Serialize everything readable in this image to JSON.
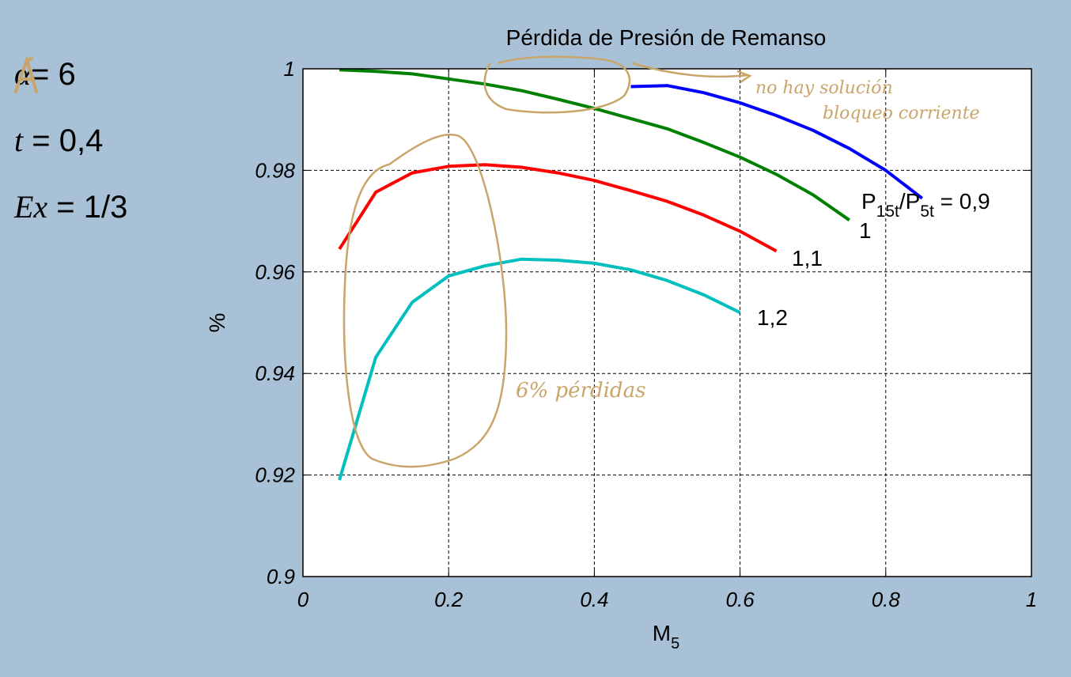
{
  "params": [
    {
      "symbol": "",
      "eq": "= 6",
      "struck": true
    },
    {
      "symbol": "t",
      "eq": " = 0,4",
      "struck": false
    },
    {
      "symbol": "Ex",
      "eq": " = 1/3",
      "struck": false
    }
  ],
  "annotations": {
    "choke": [
      "no hay solución",
      "bloqueo corriente"
    ],
    "losses": "6% pérdidas"
  },
  "colors": {
    "background": "#a9c1d6",
    "plot_bg": "#ffffff",
    "annotation": "#c9a56a"
  },
  "chart_data": {
    "type": "line",
    "title": "Pérdida de Presión de Remanso",
    "xlabel": "M",
    "xlabel_sub": "5",
    "ylabel": "%",
    "xlim": [
      0,
      1
    ],
    "ylim": [
      0.9,
      1
    ],
    "xticks": [
      0,
      0.2,
      0.4,
      0.6,
      0.8,
      1
    ],
    "xtick_labels": [
      "0",
      "0.2",
      "0.4",
      "0.6",
      "0.8",
      "1"
    ],
    "yticks": [
      0.9,
      0.92,
      0.94,
      0.96,
      0.98,
      1
    ],
    "ytick_labels": [
      "0.9",
      "0.92",
      "0.94",
      "0.96",
      "0.98",
      "1"
    ],
    "grid": true,
    "legend_label_parts": [
      "P",
      "15t",
      "/P",
      "5t",
      " = 0,9"
    ],
    "series": [
      {
        "name": "0,9",
        "color": "#0000ff",
        "x": [
          0.45,
          0.5,
          0.55,
          0.6,
          0.65,
          0.7,
          0.75,
          0.8,
          0.85
        ],
        "y": [
          0.9965,
          0.9967,
          0.9953,
          0.9933,
          0.9908,
          0.9879,
          0.9843,
          0.98,
          0.9745
        ]
      },
      {
        "name": "1",
        "color": "#008000",
        "x": [
          0.05,
          0.1,
          0.15,
          0.2,
          0.25,
          0.3,
          0.35,
          0.4,
          0.45,
          0.5,
          0.55,
          0.6,
          0.65,
          0.7,
          0.75
        ],
        "y": [
          0.9998,
          0.9995,
          0.999,
          0.998,
          0.997,
          0.9957,
          0.994,
          0.9922,
          0.9902,
          0.9882,
          0.9855,
          0.9826,
          0.9792,
          0.9752,
          0.9702
        ]
      },
      {
        "name": "1,1",
        "color": "#ff0000",
        "x": [
          0.05,
          0.1,
          0.15,
          0.2,
          0.25,
          0.3,
          0.35,
          0.4,
          0.45,
          0.5,
          0.55,
          0.6,
          0.65
        ],
        "y": [
          0.9645,
          0.9757,
          0.9795,
          0.9808,
          0.9811,
          0.9806,
          0.9795,
          0.978,
          0.976,
          0.9739,
          0.9712,
          0.968,
          0.9641
        ]
      },
      {
        "name": "1,2",
        "color": "#00bfbf",
        "x": [
          0.05,
          0.1,
          0.15,
          0.2,
          0.25,
          0.3,
          0.35,
          0.4,
          0.45,
          0.5,
          0.55,
          0.6
        ],
        "y": [
          0.919,
          0.9432,
          0.954,
          0.9592,
          0.9612,
          0.9625,
          0.9623,
          0.9617,
          0.9604,
          0.9583,
          0.9555,
          0.952
        ]
      }
    ]
  }
}
